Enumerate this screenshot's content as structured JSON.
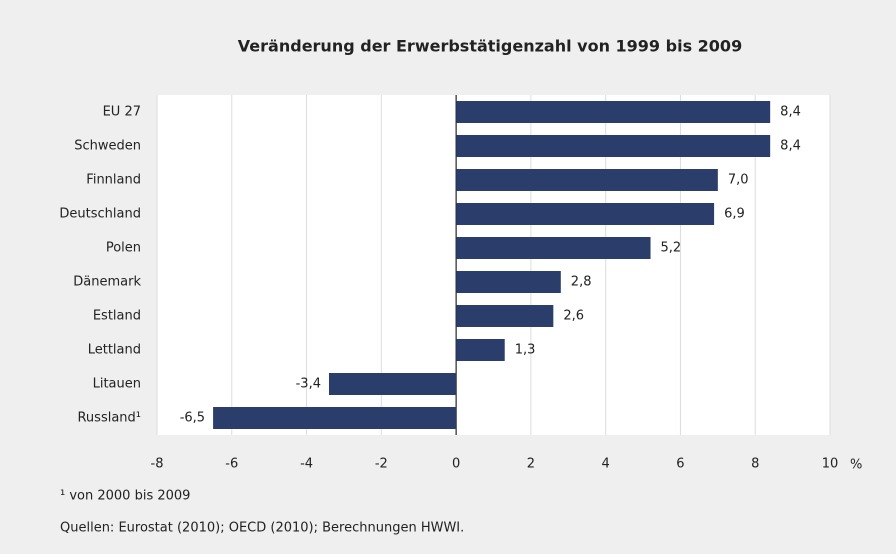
{
  "chart_data": {
    "type": "bar",
    "orientation": "horizontal",
    "title": "Veränderung der Erwerbstätigenzahl von 1999 bis 2009",
    "categories": [
      "EU 27",
      "Schweden",
      "Finnland",
      "Deutschland",
      "Polen",
      "Dänemark",
      "Estland",
      "Lettland",
      "Litauen",
      "Russland¹"
    ],
    "values": [
      8.4,
      8.4,
      7.0,
      6.9,
      5.2,
      2.8,
      2.6,
      1.3,
      -3.4,
      -6.5
    ],
    "value_labels": [
      "8,4",
      "8,4",
      "7,0",
      "6,9",
      "5,2",
      "2,8",
      "2,6",
      "1,3",
      "-3,4",
      "-6,5"
    ],
    "color": "#2b3d6b",
    "xlim": [
      -8,
      10
    ],
    "xticks": [
      -8,
      -6,
      -4,
      -2,
      0,
      2,
      4,
      6,
      8,
      10
    ],
    "x_unit": "%",
    "grid": true,
    "footnote": "¹ von 2000 bis 2009",
    "source": "Quellen: Eurostat (2010); OECD (2010); Berechnungen HWWI."
  }
}
